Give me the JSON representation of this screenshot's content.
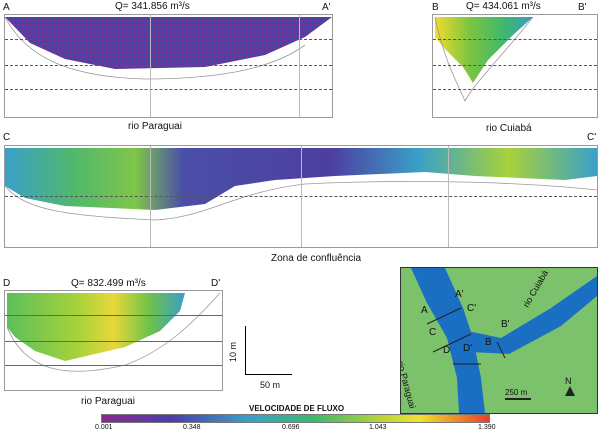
{
  "sections": {
    "ab": {
      "left": "A",
      "right": "A'",
      "q": "Q= 341.856 m³/s",
      "caption": "rio Paraguai"
    },
    "bb": {
      "left": "B",
      "right": "B'",
      "q": "Q= 434.061 m³/s",
      "caption": "rio Cuiabá"
    },
    "cc": {
      "left": "C",
      "right": "C'",
      "caption": "Zona de confluência"
    },
    "dd": {
      "left": "D",
      "right": "D'",
      "q": "Q= 832.499 m³/s",
      "caption": "rio Paraguai"
    }
  },
  "scale": {
    "vertical": "10 m",
    "horizontal": "50 m"
  },
  "colorbar": {
    "title": "VELOCIDADE DE FLUXO",
    "ticks": [
      "0.001",
      "0.348",
      "0.696",
      "1.043",
      "1.390"
    ],
    "colors": [
      "#8a2a8f",
      "#4a3fa8",
      "#3aa0c8",
      "#3fb86b",
      "#b7d43a",
      "#f2e12d",
      "#e8402a"
    ]
  },
  "map": {
    "labels": {
      "a": "A",
      "a2": "A'",
      "c": "C",
      "c2": "C'",
      "b": "B",
      "b2": "B'",
      "d": "D",
      "d2": "D'",
      "paraguai": "rio Paraguai",
      "cuiaba": "rio Cuiabá",
      "scale": "250 m",
      "north": "N"
    },
    "colors": {
      "land": "#7cc16b",
      "water": "#1b6fc2"
    }
  }
}
